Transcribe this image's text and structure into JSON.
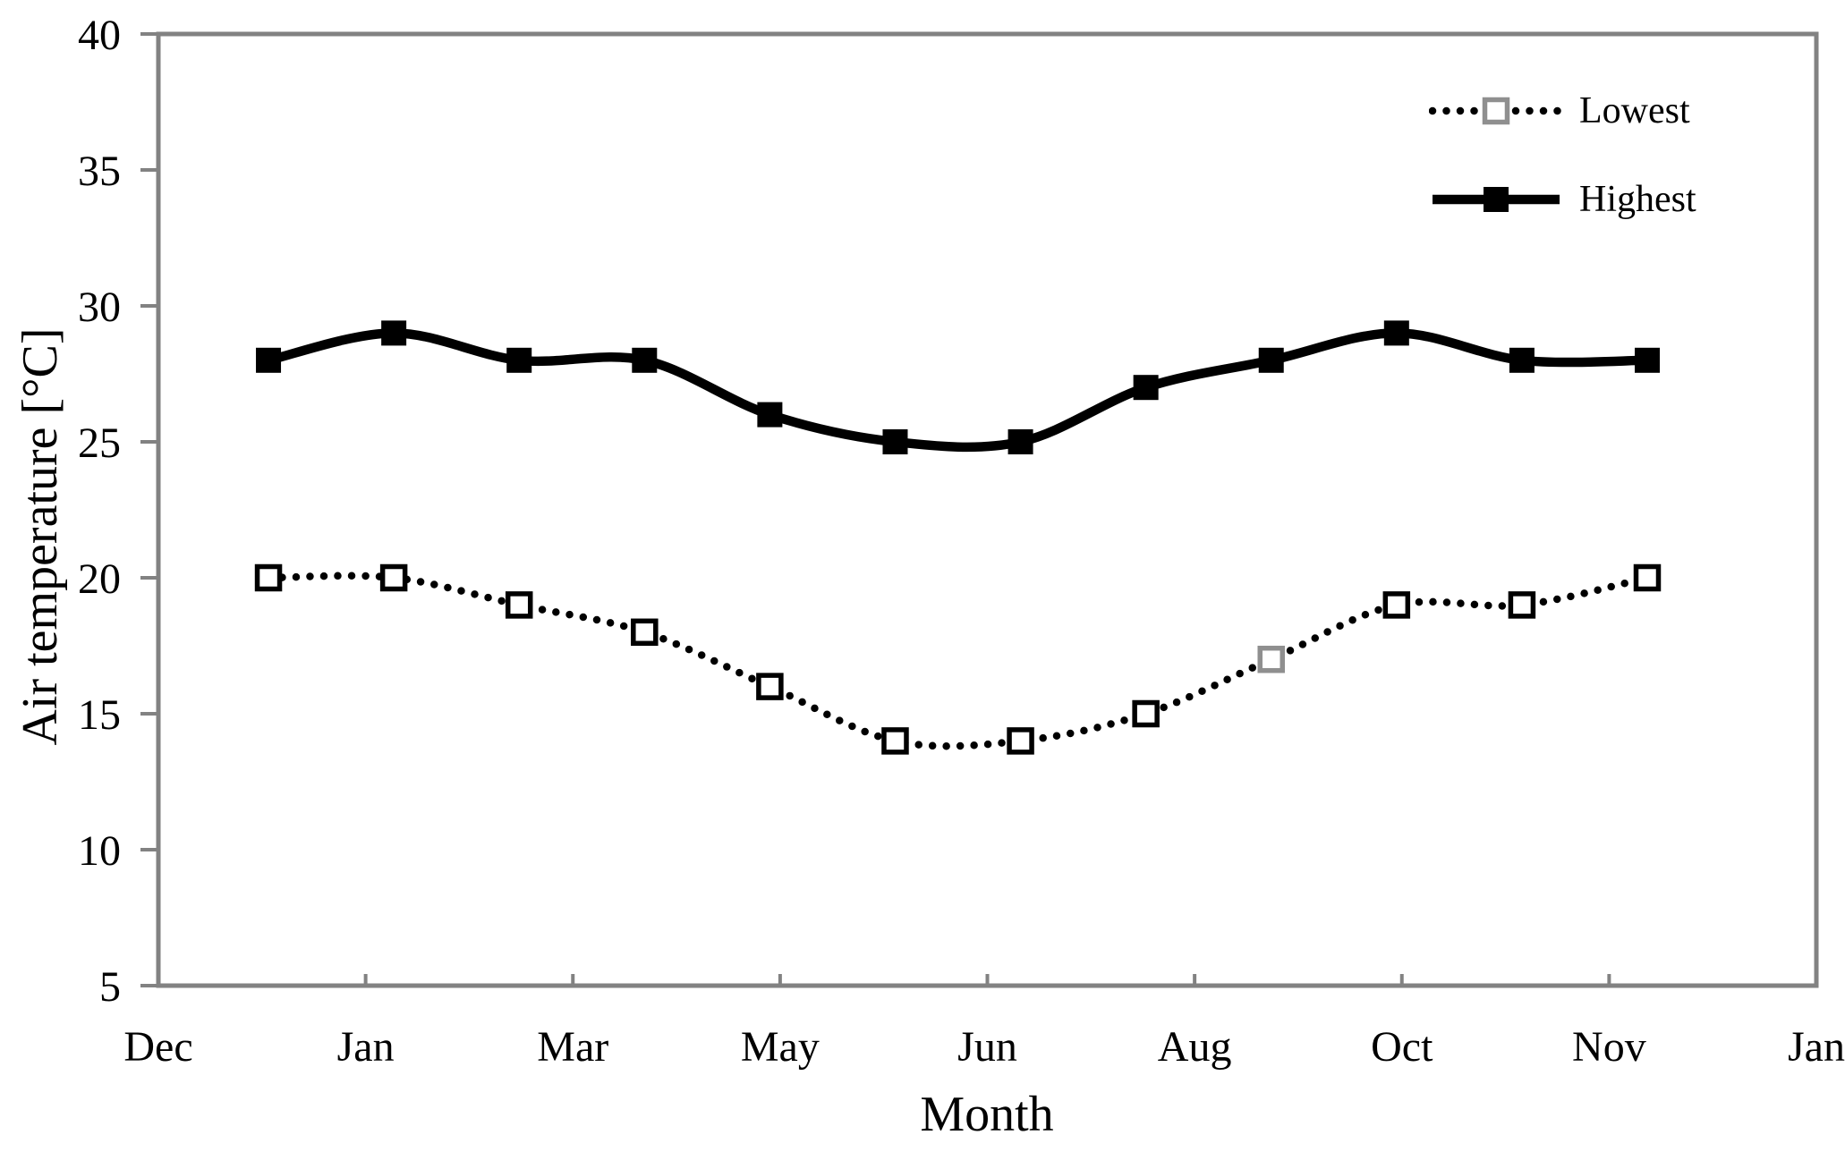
{
  "figure": {
    "background_color": "#ffffff",
    "axis_color": "#828282",
    "text_color": "#000000"
  },
  "chart_data": {
    "type": "line",
    "title": "",
    "xlabel": "Month",
    "ylabel": "Air temperature [°C]",
    "ylim": [
      5,
      40
    ],
    "ytick_values": [
      40,
      35,
      30,
      25,
      20,
      15,
      10,
      5
    ],
    "ytick_labels": [
      "40",
      "35",
      "30",
      "25",
      "20",
      "15",
      "10",
      "5"
    ],
    "xtick_labels": [
      "Dec",
      "Jan",
      "Mar",
      "May",
      "Jun",
      "Aug",
      "Oct",
      "Nov",
      "Jan"
    ],
    "grid": false,
    "legend_position": "top-right",
    "series": [
      {
        "name": "Lowest",
        "line_style": "dotted",
        "marker": "open-square",
        "color": "#000000",
        "marker_stroke": "#000000",
        "marker_stroke_overrides": {
          "8": "#8f8f8f"
        },
        "legend_marker_stroke": "#8f8f8f",
        "values": [
          20,
          20,
          19,
          18,
          16,
          14,
          14,
          15,
          17,
          19,
          19,
          20
        ]
      },
      {
        "name": "Highest",
        "line_style": "solid",
        "marker": "filled-square",
        "color": "#000000",
        "values": [
          28,
          29,
          28,
          28,
          26,
          25,
          25,
          27,
          28,
          29,
          28,
          28
        ]
      }
    ]
  }
}
